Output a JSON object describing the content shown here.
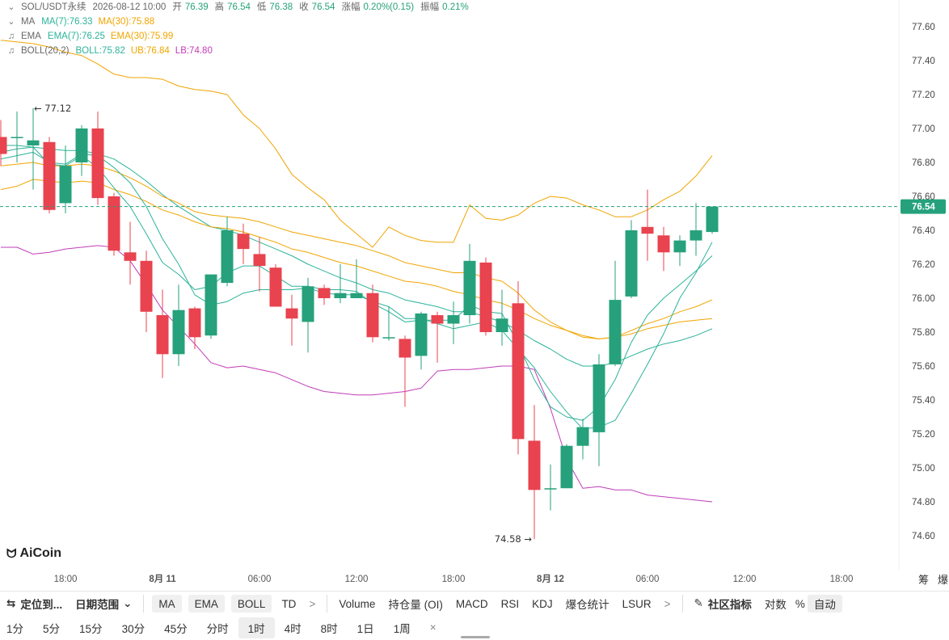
{
  "header": {
    "symbol": "SOL/USDT永续",
    "datetime": "2026-08-12 10:00",
    "open_label": "开",
    "open": "76.39",
    "high_label": "高",
    "high": "76.54",
    "low_label": "低",
    "low": "76.38",
    "close_label": "收",
    "close": "76.54",
    "change_label": "涨幅",
    "change": "0.20%(0.15)",
    "amp_label": "振幅",
    "amp": "0.21%"
  },
  "indicators": {
    "ma": {
      "label": "MA",
      "a": "MA(7):76.33",
      "b": "MA(30):75.88"
    },
    "ema": {
      "label": "EMA",
      "a": "EMA(7):76.25",
      "b": "EMA(30):75.99"
    },
    "boll": {
      "label": "BOLL(20,2)",
      "a": "BOLL:75.82",
      "b": "UB:76.84",
      "c": "LB:74.80"
    }
  },
  "colors": {
    "up": "#26a17b",
    "down": "#e8434f",
    "ma7": "#2bb39a",
    "ma30": "#f0a500",
    "ema7": "#2bb39a",
    "ema30": "#f0a500",
    "boll_mid": "#2bb39a",
    "boll_ub": "#f0a500",
    "boll_lb": "#c23cb8"
  },
  "chart_data": {
    "type": "candlestick",
    "ylim": [
      74.5,
      77.7
    ],
    "yticks": [
      "77.60",
      "77.40",
      "77.20",
      "77.00",
      "76.80",
      "76.60",
      "76.40",
      "76.20",
      "76.00",
      "75.80",
      "75.60",
      "75.40",
      "75.20",
      "75.00",
      "74.80",
      "74.60"
    ],
    "xticks": [
      {
        "label": "18:00",
        "i": 4
      },
      {
        "label": "8月 11",
        "i": 10,
        "bold": true
      },
      {
        "label": "06:00",
        "i": 16
      },
      {
        "label": "12:00",
        "i": 22
      },
      {
        "label": "18:00",
        "i": 28
      },
      {
        "label": "8月 12",
        "i": 34,
        "bold": true
      },
      {
        "label": "06:00",
        "i": 40
      },
      {
        "label": "12:00",
        "i": 46
      },
      {
        "label": "18:00",
        "i": 52
      }
    ],
    "ohlc": [
      [
        76.95,
        77.05,
        76.78,
        76.85
      ],
      [
        76.95,
        77.1,
        76.8,
        76.95
      ],
      [
        76.9,
        77.12,
        76.64,
        76.93
      ],
      [
        76.92,
        76.95,
        76.5,
        76.52
      ],
      [
        76.56,
        76.9,
        76.5,
        76.78
      ],
      [
        76.8,
        77.02,
        76.72,
        77.0
      ],
      [
        77.0,
        77.1,
        76.55,
        76.59
      ],
      [
        76.6,
        76.62,
        76.25,
        76.28
      ],
      [
        76.27,
        76.45,
        76.08,
        76.22
      ],
      [
        76.22,
        76.28,
        75.8,
        75.92
      ],
      [
        75.9,
        76.05,
        75.53,
        75.67
      ],
      [
        75.67,
        76.08,
        75.6,
        75.93
      ],
      [
        75.94,
        75.95,
        75.7,
        75.77
      ],
      [
        75.78,
        76.14,
        75.76,
        76.14
      ],
      [
        76.09,
        76.48,
        76.07,
        76.4
      ],
      [
        76.38,
        76.44,
        76.2,
        76.29
      ],
      [
        76.26,
        76.36,
        76.04,
        76.19
      ],
      [
        76.18,
        76.2,
        75.95,
        75.95
      ],
      [
        75.94,
        76.02,
        75.72,
        75.88
      ],
      [
        75.86,
        76.12,
        75.68,
        76.07
      ],
      [
        76.06,
        76.08,
        75.96,
        76.0
      ],
      [
        76.0,
        76.2,
        75.97,
        76.03
      ],
      [
        76.0,
        76.23,
        76.0,
        76.03
      ],
      [
        76.03,
        76.08,
        75.74,
        75.77
      ],
      [
        75.77,
        75.95,
        75.75,
        75.77
      ],
      [
        75.76,
        75.78,
        75.36,
        75.65
      ],
      [
        75.66,
        75.92,
        75.58,
        75.91
      ],
      [
        75.9,
        75.92,
        75.62,
        75.85
      ],
      [
        75.85,
        75.98,
        75.73,
        75.9
      ],
      [
        75.9,
        76.32,
        75.85,
        76.22
      ],
      [
        76.21,
        76.24,
        75.78,
        75.8
      ],
      [
        75.8,
        76.05,
        75.72,
        75.88
      ],
      [
        75.97,
        76.1,
        75.08,
        75.17
      ],
      [
        75.16,
        75.37,
        74.58,
        74.87
      ],
      [
        74.88,
        75.02,
        74.75,
        74.88
      ],
      [
        74.88,
        75.14,
        74.88,
        75.13
      ],
      [
        75.13,
        75.29,
        75.05,
        75.24
      ],
      [
        75.21,
        75.67,
        75.01,
        75.61
      ],
      [
        75.61,
        76.22,
        75.6,
        75.99
      ],
      [
        76.01,
        76.46,
        76.0,
        76.4
      ],
      [
        76.42,
        76.64,
        76.22,
        76.38
      ],
      [
        76.37,
        76.42,
        76.16,
        76.27
      ],
      [
        76.27,
        76.37,
        76.19,
        76.34
      ],
      [
        76.34,
        76.56,
        76.25,
        76.4
      ],
      [
        76.39,
        76.54,
        76.38,
        76.54
      ]
    ],
    "ma7": [
      76.82,
      76.84,
      76.86,
      76.8,
      76.79,
      76.85,
      76.84,
      76.77,
      76.68,
      76.54,
      76.35,
      76.2,
      76.02,
      75.96,
      75.98,
      76.03,
      76.05,
      76.05,
      76.05,
      76.06,
      76.03,
      76.02,
      76.02,
      75.98,
      75.95,
      75.88,
      75.88,
      75.85,
      75.82,
      75.84,
      75.86,
      75.81,
      75.7,
      75.59,
      75.45,
      75.33,
      75.23,
      75.24,
      75.28,
      75.44,
      75.61,
      75.79,
      76.0,
      76.15,
      76.33
    ],
    "ma30": [
      76.64,
      76.66,
      76.7,
      76.69,
      76.68,
      76.69,
      76.68,
      76.64,
      76.61,
      76.57,
      76.52,
      76.49,
      76.45,
      76.42,
      76.41,
      76.39,
      76.36,
      76.33,
      76.29,
      76.27,
      76.24,
      76.21,
      76.19,
      76.16,
      76.13,
      76.1,
      76.09,
      76.07,
      76.04,
      76.02,
      75.99,
      75.97,
      75.93,
      75.88,
      75.84,
      75.81,
      75.78,
      75.76,
      75.77,
      75.79,
      75.82,
      75.84,
      75.86,
      75.87,
      75.88
    ],
    "ema7": [
      76.86,
      76.88,
      76.89,
      76.79,
      76.78,
      76.84,
      76.77,
      76.65,
      76.54,
      76.38,
      76.21,
      76.14,
      76.05,
      76.07,
      76.15,
      76.19,
      76.19,
      76.13,
      76.07,
      76.07,
      76.05,
      76.05,
      76.04,
      75.97,
      75.92,
      75.86,
      75.87,
      75.87,
      75.87,
      75.96,
      75.92,
      75.91,
      75.73,
      75.52,
      75.36,
      75.3,
      75.28,
      75.36,
      75.52,
      75.74,
      75.9,
      76.0,
      76.08,
      76.16,
      76.25
    ],
    "ema30": [
      76.78,
      76.79,
      76.8,
      76.78,
      76.78,
      76.79,
      76.78,
      76.75,
      76.71,
      76.66,
      76.6,
      76.56,
      76.51,
      76.49,
      76.48,
      76.47,
      76.45,
      76.42,
      76.39,
      76.37,
      76.35,
      76.33,
      76.31,
      76.28,
      76.25,
      76.21,
      76.19,
      76.17,
      76.15,
      76.15,
      76.12,
      76.1,
      76.03,
      75.93,
      75.86,
      75.81,
      75.77,
      75.76,
      75.77,
      75.81,
      75.85,
      75.88,
      75.92,
      75.95,
      75.99
    ],
    "boll_mid": [
      76.9,
      76.9,
      76.89,
      76.88,
      76.87,
      76.87,
      76.85,
      76.82,
      76.76,
      76.69,
      76.61,
      76.54,
      76.48,
      76.42,
      76.4,
      76.37,
      76.33,
      76.29,
      76.25,
      76.2,
      76.16,
      76.12,
      76.09,
      76.05,
      76.03,
      75.99,
      75.97,
      75.95,
      75.92,
      75.92,
      75.89,
      75.86,
      75.81,
      75.75,
      75.7,
      75.64,
      75.6,
      75.6,
      75.62,
      75.66,
      75.7,
      75.73,
      75.75,
      75.78,
      75.82
    ],
    "boll_ub": [
      77.52,
      77.51,
      77.5,
      77.48,
      77.45,
      77.43,
      77.38,
      77.32,
      77.3,
      77.3,
      77.29,
      77.25,
      77.23,
      77.22,
      77.2,
      77.08,
      77.0,
      76.88,
      76.73,
      76.65,
      76.58,
      76.46,
      76.38,
      76.3,
      76.42,
      76.37,
      76.34,
      76.33,
      76.33,
      76.55,
      76.47,
      76.46,
      76.49,
      76.56,
      76.6,
      76.59,
      76.55,
      76.52,
      76.48,
      76.48,
      76.52,
      76.58,
      76.63,
      76.72,
      76.84
    ],
    "boll_lb": [
      76.3,
      76.3,
      76.26,
      76.27,
      76.29,
      76.3,
      76.31,
      76.3,
      76.22,
      76.08,
      75.93,
      75.83,
      75.73,
      75.62,
      75.59,
      75.6,
      75.58,
      75.56,
      75.52,
      75.48,
      75.45,
      75.44,
      75.43,
      75.43,
      75.44,
      75.45,
      75.47,
      75.57,
      75.58,
      75.58,
      75.59,
      75.6,
      75.6,
      75.58,
      75.35,
      75.05,
      74.88,
      74.89,
      74.87,
      74.87,
      74.84,
      74.83,
      74.82,
      74.81,
      74.8
    ],
    "annotations": {
      "high_marker": "← 77.12",
      "low_marker": "74.58 →",
      "last_price": "76.54"
    }
  },
  "brand": {
    "name": "AiCoin"
  },
  "axis_tools": [
    "筹",
    "爆"
  ],
  "toolbar": {
    "locate": "定位到...",
    "date_range": "日期范围",
    "chips": [
      "MA",
      "EMA",
      "BOLL"
    ],
    "td": "TD",
    "chevron": ">",
    "subs": [
      "Volume",
      "持仓量 (OI)",
      "MACD",
      "RSI",
      "KDJ",
      "爆仓统计",
      "LSUR"
    ],
    "community": "社区指标",
    "log": "对数",
    "pct": "%",
    "auto": "自动"
  },
  "intervals": {
    "items": [
      "1分",
      "5分",
      "15分",
      "30分",
      "45分",
      "分时",
      "1时",
      "4时",
      "8时",
      "1日",
      "1周"
    ],
    "active": "1时",
    "close": "×"
  }
}
